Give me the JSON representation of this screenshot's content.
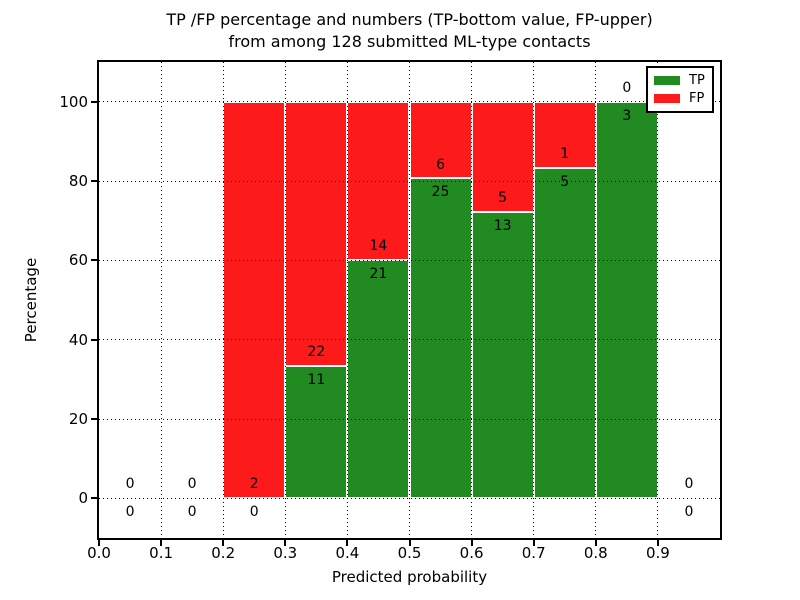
{
  "chart_data": {
    "type": "bar",
    "stacked": true,
    "normalized_to_percent": true,
    "title_line1": "TP /FP percentage and numbers (TP-bottom value, FP-upper)",
    "title_line2": "from among 128 submitted ML-type contacts",
    "xlabel": "Predicted probability",
    "ylabel": "Percentage",
    "total_contacts": 128,
    "xlim": [
      0.0,
      1.0
    ],
    "ylim": [
      -10,
      110
    ],
    "grid": "dotted, drawn above bars",
    "legend_position": "upper right",
    "colors": {
      "tp": "#218a21",
      "fp": "#fc1a1a"
    },
    "legend": [
      {
        "label": "TP"
      },
      {
        "label": "FP"
      }
    ],
    "x_ticks": [
      {
        "v": 0.0,
        "label": "0.0"
      },
      {
        "v": 0.1,
        "label": "0.1"
      },
      {
        "v": 0.2,
        "label": "0.2"
      },
      {
        "v": 0.3,
        "label": "0.3"
      },
      {
        "v": 0.4,
        "label": "0.4"
      },
      {
        "v": 0.5,
        "label": "0.5"
      },
      {
        "v": 0.6,
        "label": "0.6"
      },
      {
        "v": 0.7,
        "label": "0.7"
      },
      {
        "v": 0.8,
        "label": "0.8"
      },
      {
        "v": 0.9,
        "label": "0.9"
      }
    ],
    "y_ticks": [
      {
        "v": 0,
        "label": "0"
      },
      {
        "v": 20,
        "label": "20"
      },
      {
        "v": 40,
        "label": "40"
      },
      {
        "v": 60,
        "label": "60"
      },
      {
        "v": 80,
        "label": "80"
      },
      {
        "v": 100,
        "label": "100"
      }
    ],
    "bins": [
      {
        "range": [
          0.0,
          0.1
        ],
        "tp": 0,
        "fp": 0,
        "tp_pct": null
      },
      {
        "range": [
          0.1,
          0.2
        ],
        "tp": 0,
        "fp": 0,
        "tp_pct": null
      },
      {
        "range": [
          0.2,
          0.3
        ],
        "tp": 0,
        "fp": 2,
        "tp_pct": 0.0
      },
      {
        "range": [
          0.3,
          0.4
        ],
        "tp": 11,
        "fp": 22,
        "tp_pct": 33.33
      },
      {
        "range": [
          0.4,
          0.5
        ],
        "tp": 21,
        "fp": 14,
        "tp_pct": 60.0
      },
      {
        "range": [
          0.5,
          0.6
        ],
        "tp": 25,
        "fp": 6,
        "tp_pct": 80.65
      },
      {
        "range": [
          0.6,
          0.7
        ],
        "tp": 13,
        "fp": 5,
        "tp_pct": 72.22
      },
      {
        "range": [
          0.7,
          0.8
        ],
        "tp": 5,
        "fp": 1,
        "tp_pct": 83.33
      },
      {
        "range": [
          0.8,
          0.9
        ],
        "tp": 3,
        "fp": 0,
        "tp_pct": 100.0
      },
      {
        "range": [
          0.9,
          1.0
        ],
        "tp": 0,
        "fp": 0,
        "tp_pct": null
      }
    ]
  }
}
